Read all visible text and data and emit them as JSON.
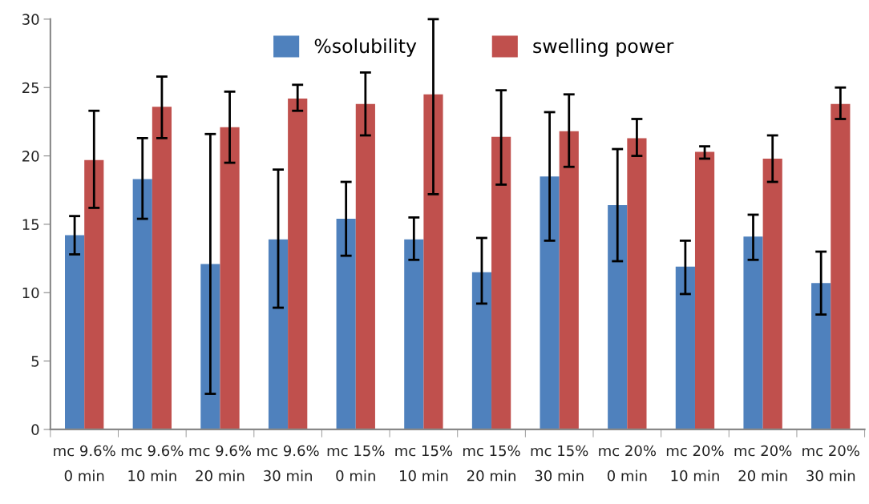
{
  "chart_data": {
    "type": "bar",
    "categories": [
      "mc 9.6%\n0 min",
      "mc 9.6%\n10 min",
      "mc 9.6%\n20 min",
      "mc 9.6%\n30 min",
      "mc 15%\n0 min",
      "mc 15%\n10 min",
      "mc 15%\n20 min",
      "mc 15%\n30 min",
      "mc 20%\n0 min",
      "mc 20%\n10 min",
      "mc 20%\n20 min",
      "mc 20%\n30 min"
    ],
    "series": [
      {
        "name": "%solubility",
        "color": "#4f81bd",
        "values": [
          14.2,
          18.3,
          12.1,
          13.9,
          15.4,
          13.9,
          11.5,
          18.5,
          16.4,
          11.9,
          14.1,
          10.7
        ],
        "errors": [
          [
            12.8,
            15.6
          ],
          [
            15.4,
            21.3
          ],
          [
            2.6,
            21.6
          ],
          [
            8.9,
            19.0
          ],
          [
            12.7,
            18.1
          ],
          [
            12.4,
            15.5
          ],
          [
            9.2,
            14.0
          ],
          [
            13.8,
            23.2
          ],
          [
            12.3,
            20.5
          ],
          [
            9.9,
            13.8
          ],
          [
            12.4,
            15.7
          ],
          [
            8.4,
            13.0
          ]
        ]
      },
      {
        "name": "swelling power",
        "color": "#c0504d",
        "values": [
          19.7,
          23.6,
          22.1,
          24.2,
          23.8,
          24.5,
          21.4,
          21.8,
          21.3,
          20.3,
          19.8,
          23.8
        ],
        "errors": [
          [
            16.2,
            23.3
          ],
          [
            21.3,
            25.8
          ],
          [
            19.5,
            24.7
          ],
          [
            23.3,
            25.2
          ],
          [
            21.5,
            26.1
          ],
          [
            17.2,
            30
          ],
          [
            17.9,
            24.8
          ],
          [
            19.2,
            24.5
          ],
          [
            20.0,
            22.7
          ],
          [
            19.8,
            20.7
          ],
          [
            18.1,
            21.5
          ],
          [
            22.7,
            25.0
          ]
        ]
      }
    ],
    "ylim": [
      0,
      30
    ],
    "yticks": [
      0,
      5,
      10,
      15,
      20,
      25,
      30
    ],
    "grid": false,
    "legend": "top"
  }
}
